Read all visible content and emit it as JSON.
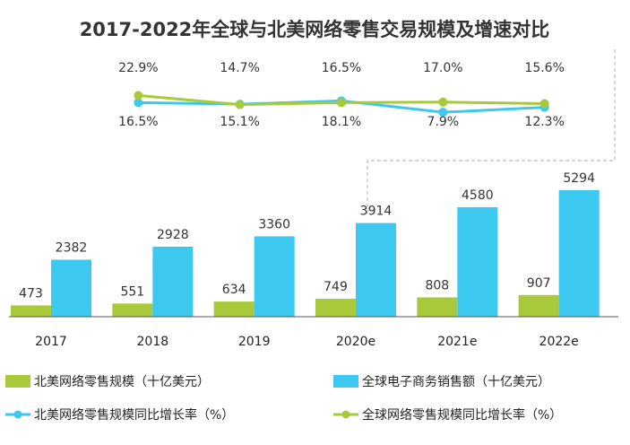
{
  "chart_data": {
    "type": "bar",
    "title": "2017-2022年全球与北美网络零售交易规模及增速对比",
    "categories": [
      "2017",
      "2018",
      "2019",
      "2020e",
      "2021e",
      "2022e"
    ],
    "series": [
      {
        "name": "北美网络零售规模（十亿美元）",
        "color": "#a8c93a",
        "values": [
          473,
          551,
          634,
          749,
          808,
          907
        ]
      },
      {
        "name": "全球电子商务销售额（十亿美元）",
        "color": "#3dc8ef",
        "values": [
          2382,
          2928,
          3360,
          3914,
          4580,
          5294
        ]
      }
    ],
    "growth_series": [
      {
        "name": "北美网络零售规模同比增长率（%）",
        "color": "#3dc8ef",
        "values": [
          16.5,
          15.1,
          18.1,
          7.9,
          12.3
        ],
        "labels": [
          "16.5%",
          "15.1%",
          "18.1%",
          "7.9%",
          "12.3%"
        ]
      },
      {
        "name": "全球网络零售规模同比增长率（%）",
        "color": "#a8c93a",
        "values": [
          22.9,
          14.7,
          16.5,
          17.0,
          15.6
        ],
        "labels": [
          "22.9%",
          "14.7%",
          "16.5%",
          "17.0%",
          "15.6%"
        ]
      }
    ],
    "ylim": [
      0,
      6000
    ],
    "growth_ylim": [
      -20,
      60
    ],
    "xlabel": "",
    "ylabel": "",
    "legend_position": "bottom"
  }
}
